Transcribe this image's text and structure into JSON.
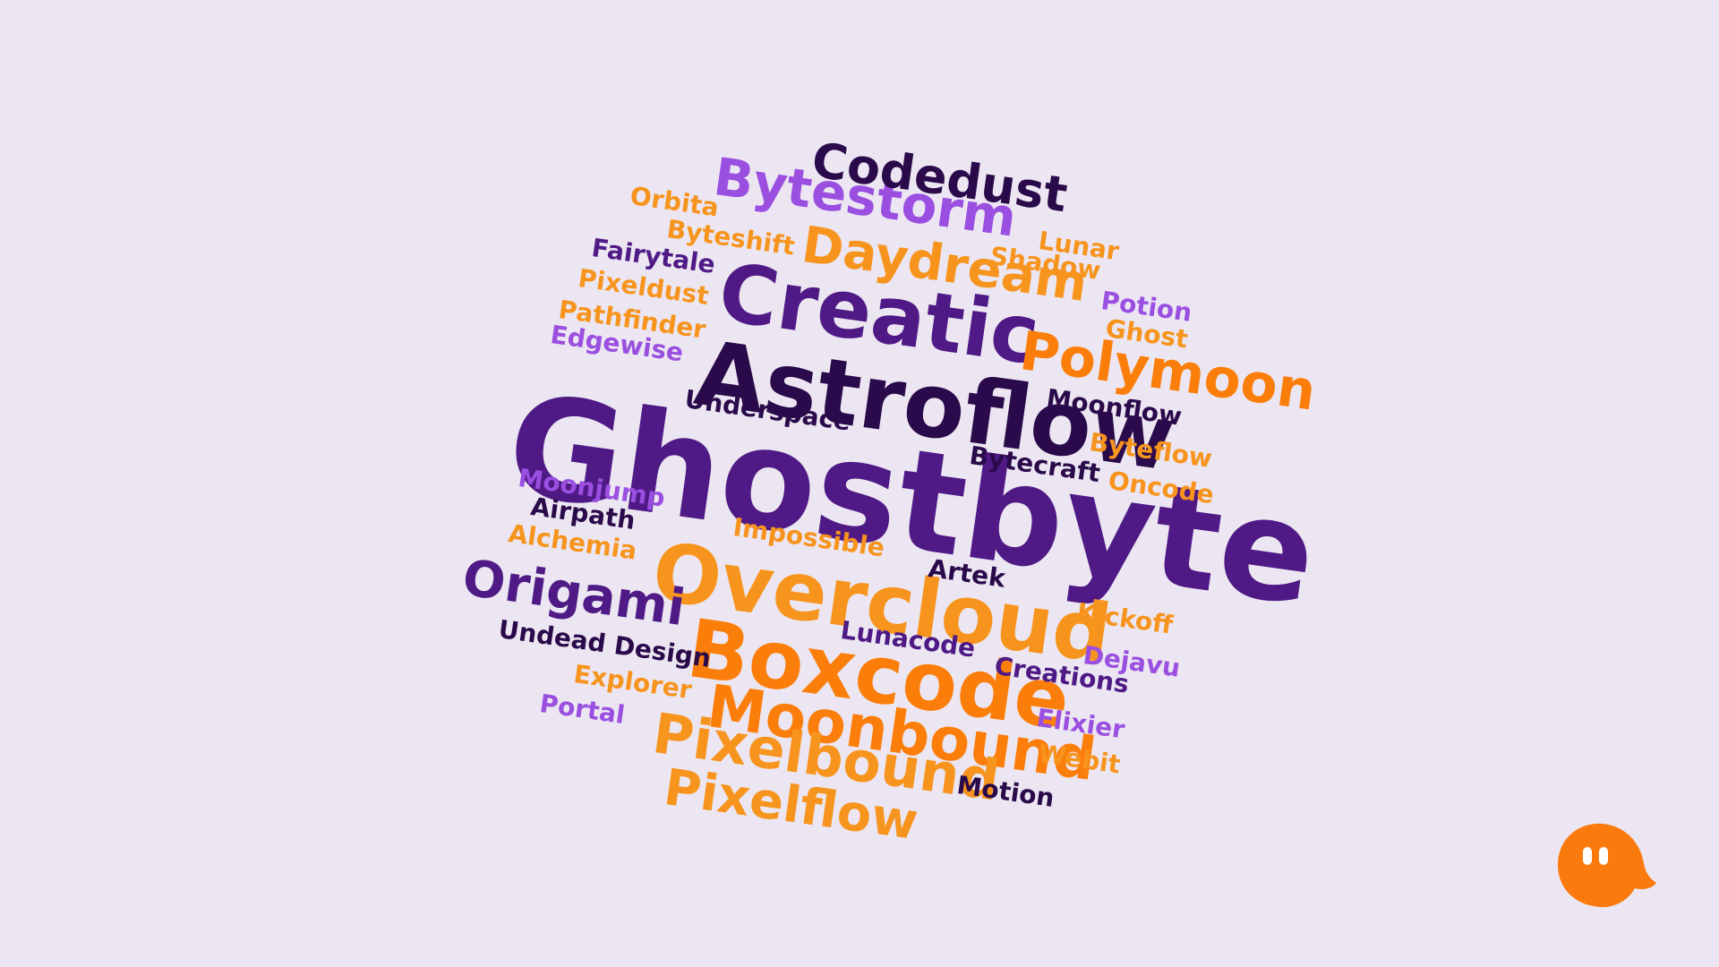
{
  "palette": {
    "deep": "#2a0a4a",
    "purple": "#4f1a86",
    "violet": "#9a4fe0",
    "orange": "#fb7e0a",
    "amber": "#f7941d",
    "background": "#ece6f2"
  },
  "logo": {
    "icon": "ghost-icon",
    "color": "#fb7a0e"
  },
  "words": [
    {
      "text": "Ghostbyte",
      "color": "#4f1a86"
    },
    {
      "text": "Overcloud",
      "color": "#f7941d"
    },
    {
      "text": "Boxcode",
      "color": "#fb7e0a"
    },
    {
      "text": "Astroflow",
      "color": "#2a0a4a"
    },
    {
      "text": "Creatic",
      "color": "#4f1a86"
    },
    {
      "text": "Moonbound",
      "color": "#fb7e0a"
    },
    {
      "text": "Polymoon",
      "color": "#fb7e0a"
    },
    {
      "text": "Daydream",
      "color": "#f7941d"
    },
    {
      "text": "Bytestorm",
      "color": "#9a4fe0"
    },
    {
      "text": "Codedust",
      "color": "#2a0a4a"
    },
    {
      "text": "Pixelbound",
      "color": "#f7941d"
    },
    {
      "text": "Pixelflow",
      "color": "#f7941d"
    },
    {
      "text": "Origami",
      "color": "#4f1a86"
    },
    {
      "text": "Underspace",
      "color": "#2a0a4a"
    },
    {
      "text": "Moonflow",
      "color": "#2a0a4a"
    },
    {
      "text": "Bytecraft",
      "color": "#2a0a4a"
    },
    {
      "text": "Byteflow",
      "color": "#f7941d"
    },
    {
      "text": "Oncode",
      "color": "#f7941d"
    },
    {
      "text": "Impossible",
      "color": "#f7941d"
    },
    {
      "text": "Artek",
      "color": "#2a0a4a"
    },
    {
      "text": "Lunacode",
      "color": "#4f1a86"
    },
    {
      "text": "Creations",
      "color": "#4f1a86"
    },
    {
      "text": "Kickoff",
      "color": "#f7941d"
    },
    {
      "text": "Dejavu",
      "color": "#9a4fe0"
    },
    {
      "text": "Elixier",
      "color": "#9a4fe0"
    },
    {
      "text": "Webit",
      "color": "#f7941d"
    },
    {
      "text": "Motion",
      "color": "#2a0a4a"
    },
    {
      "text": "Lunar",
      "color": "#f7941d"
    },
    {
      "text": "Shadow",
      "color": "#f7941d"
    },
    {
      "text": "Potion",
      "color": "#9a4fe0"
    },
    {
      "text": "Ghost",
      "color": "#f7941d"
    },
    {
      "text": "Orbita",
      "color": "#f7941d"
    },
    {
      "text": "Byteshift",
      "color": "#f7941d"
    },
    {
      "text": "Fairytale",
      "color": "#4f1a86"
    },
    {
      "text": "Pixeldust",
      "color": "#f7941d"
    },
    {
      "text": "Pathfinder",
      "color": "#f7941d"
    },
    {
      "text": "Edgewise",
      "color": "#9a4fe0"
    },
    {
      "text": "Moonjump",
      "color": "#9a4fe0"
    },
    {
      "text": "Airpath",
      "color": "#2a0a4a"
    },
    {
      "text": "Alchemia",
      "color": "#f7941d"
    },
    {
      "text": "Undead Design",
      "color": "#2a0a4a"
    },
    {
      "text": "Explorer",
      "color": "#f7941d"
    },
    {
      "text": "Portal",
      "color": "#9a4fe0"
    }
  ]
}
